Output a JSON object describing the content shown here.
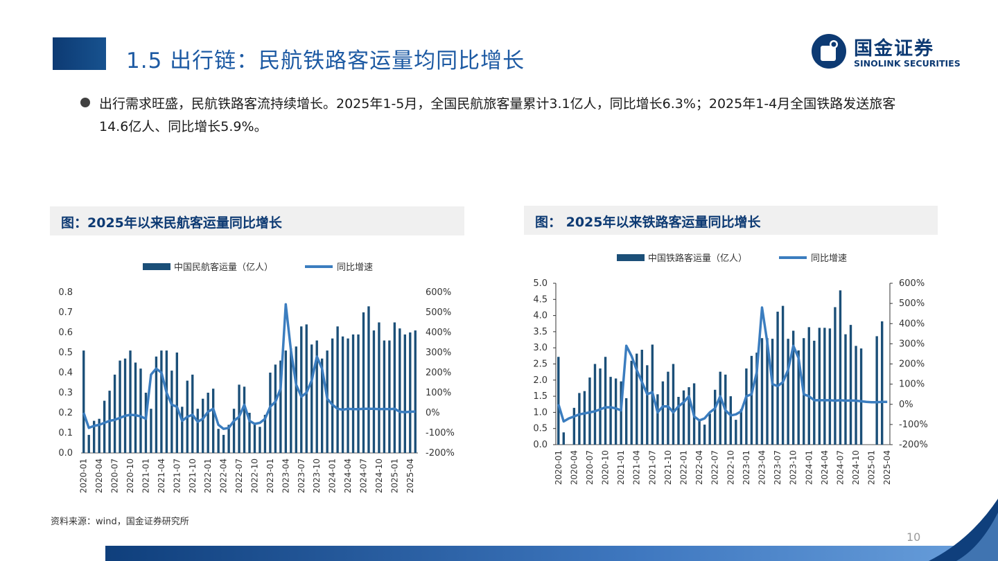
{
  "header": {
    "title": "1.5 出行链：民航铁路客运量均同比增长",
    "logo_cn": "国金证券",
    "logo_en": "SINOLINK SECURITIES"
  },
  "bullet": {
    "text": "出行需求旺盛，民航铁路客流持续增长。2025年1-5月，全国民航旅客量累计3.1亿人，同比增长6.3%；2025年1-4月全国铁路发送旅客14.6亿人、同比增长5.9%。"
  },
  "footer": {
    "source": "资料来源：wind，国金证券研究所",
    "page_number": "10"
  },
  "colors": {
    "bar": "#1b4f78",
    "line": "#3b7dbf",
    "accent": "#0d3a73"
  },
  "chart_data": [
    {
      "type": "bar",
      "title": "图：2025年以来民航客运量同比增长",
      "x": [
        "2020-01",
        "2020-02",
        "2020-03",
        "2020-04",
        "2020-05",
        "2020-06",
        "2020-07",
        "2020-08",
        "2020-09",
        "2020-10",
        "2020-11",
        "2020-12",
        "2021-01",
        "2021-02",
        "2021-03",
        "2021-04",
        "2021-05",
        "2021-06",
        "2021-07",
        "2021-08",
        "2021-09",
        "2021-10",
        "2021-11",
        "2021-12",
        "2022-01",
        "2022-02",
        "2022-03",
        "2022-04",
        "2022-05",
        "2022-06",
        "2022-07",
        "2022-08",
        "2022-09",
        "2022-10",
        "2022-11",
        "2022-12",
        "2023-01",
        "2023-02",
        "2023-03",
        "2023-04",
        "2023-05",
        "2023-06",
        "2023-07",
        "2023-08",
        "2023-09",
        "2023-10",
        "2023-11",
        "2023-12",
        "2024-01",
        "2024-02",
        "2024-03",
        "2024-04",
        "2024-05",
        "2024-06",
        "2024-07",
        "2024-08",
        "2024-09",
        "2024-10",
        "2024-11",
        "2024-12",
        "2025-01",
        "2025-02",
        "2025-03",
        "2025-04",
        "2025-05"
      ],
      "x_tick_labels": [
        "2020-01",
        "2020-04",
        "2020-07",
        "2020-10",
        "2021-01",
        "2021-04",
        "2021-07",
        "2021-10",
        "2022-01",
        "2022-04",
        "2022-07",
        "2022-10",
        "2023-01",
        "2023-04",
        "2023-07",
        "2023-10",
        "2024-01",
        "2024-04",
        "2024-07",
        "2024-10",
        "2025-01",
        "2025-04"
      ],
      "series": [
        {
          "name": "中国民航客运量（亿人）",
          "type": "bar",
          "axis": "left",
          "values": [
            0.51,
            0.09,
            0.16,
            0.17,
            0.26,
            0.31,
            0.39,
            0.46,
            0.47,
            0.51,
            0.45,
            0.42,
            0.3,
            0.22,
            0.48,
            0.51,
            0.51,
            0.41,
            0.5,
            0.23,
            0.36,
            0.39,
            0.22,
            0.27,
            0.3,
            0.32,
            0.12,
            0.09,
            0.14,
            0.22,
            0.34,
            0.33,
            0.2,
            0.15,
            0.13,
            0.19,
            0.4,
            0.44,
            0.46,
            0.51,
            0.52,
            0.53,
            0.63,
            0.64,
            0.54,
            0.56,
            0.47,
            0.51,
            0.57,
            0.63,
            0.58,
            0.57,
            0.59,
            0.59,
            0.7,
            0.73,
            0.61,
            0.65,
            0.56,
            0.56,
            0.65,
            0.62,
            0.59,
            0.6,
            0.61
          ]
        },
        {
          "name": "同比增速",
          "type": "line",
          "axis": "right",
          "values": [
            0.0,
            -0.75,
            -0.65,
            -0.6,
            -0.5,
            -0.4,
            -0.35,
            -0.25,
            -0.15,
            -0.1,
            -0.12,
            -0.18,
            -0.3,
            1.9,
            2.2,
            2.0,
            1.0,
            0.4,
            0.3,
            -0.4,
            -0.2,
            -0.1,
            -0.45,
            -0.3,
            0.05,
            0.2,
            -0.6,
            -0.8,
            -0.75,
            -0.4,
            -0.2,
            0.4,
            -0.4,
            -0.55,
            -0.5,
            -0.3,
            0.3,
            0.55,
            1.2,
            5.4,
            3.1,
            1.4,
            0.8,
            1.0,
            1.6,
            2.8,
            2.2,
            0.7,
            0.4,
            0.2,
            0.15,
            0.2,
            0.18,
            0.18,
            0.2,
            0.2,
            0.2,
            0.18,
            0.19,
            0.18,
            0.2,
            0.05,
            0.03,
            0.05,
            0.06
          ]
        }
      ],
      "ylim_left": [
        0,
        0.8
      ],
      "yticks_left": [
        "0.0",
        "0.1",
        "0.2",
        "0.3",
        "0.4",
        "0.5",
        "0.6",
        "0.7",
        "0.8"
      ],
      "ylim_right": [
        -2,
        6
      ],
      "yticks_right": [
        "-200%",
        "-100%",
        "0%",
        "100%",
        "200%",
        "300%",
        "400%",
        "500%",
        "600%"
      ],
      "legend": "top"
    },
    {
      "type": "bar",
      "title": "图： 2025年以来铁路客运量同比增长",
      "x": [
        "2020-01",
        "2020-02",
        "2020-03",
        "2020-04",
        "2020-05",
        "2020-06",
        "2020-07",
        "2020-08",
        "2020-09",
        "2020-10",
        "2020-11",
        "2020-12",
        "2021-01",
        "2021-02",
        "2021-03",
        "2021-04",
        "2021-05",
        "2021-06",
        "2021-07",
        "2021-08",
        "2021-09",
        "2021-10",
        "2021-11",
        "2021-12",
        "2022-01",
        "2022-02",
        "2022-03",
        "2022-04",
        "2022-05",
        "2022-06",
        "2022-07",
        "2022-08",
        "2022-09",
        "2022-10",
        "2022-11",
        "2022-12",
        "2023-01",
        "2023-02",
        "2023-03",
        "2023-04",
        "2023-05",
        "2023-06",
        "2023-07",
        "2023-08",
        "2023-09",
        "2023-10",
        "2023-11",
        "2023-12",
        "2024-01",
        "2024-02",
        "2024-03",
        "2024-04",
        "2024-05",
        "2024-06",
        "2024-07",
        "2024-08",
        "2024-09",
        "2024-10",
        "2024-11",
        "2024-12",
        "2025-01",
        "2025-02",
        "2025-03",
        "2025-04"
      ],
      "x_tick_labels": [
        "2020-01",
        "2020-04",
        "2020-07",
        "2020-10",
        "2021-01",
        "2021-04",
        "2021-07",
        "2021-10",
        "2022-01",
        "2022-04",
        "2022-07",
        "2022-10",
        "2023-01",
        "2023-04",
        "2023-07",
        "2023-10",
        "2024-01",
        "2024-04",
        "2024-07",
        "2024-10",
        "2025-01",
        "2025-04"
      ],
      "series": [
        {
          "name": "中国铁路客运量（亿人）",
          "type": "bar",
          "axis": "left",
          "values": [
            2.72,
            0.38,
            0.0,
            1.14,
            1.6,
            1.66,
            2.08,
            2.5,
            2.36,
            2.72,
            2.1,
            2.05,
            1.96,
            1.44,
            2.6,
            2.82,
            2.94,
            2.46,
            3.1,
            1.56,
            1.96,
            2.26,
            2.5,
            1.48,
            1.68,
            1.78,
            1.9,
            0.76,
            0.62,
            0.96,
            1.7,
            2.26,
            2.17,
            1.5,
            0.77,
            1.1,
            2.36,
            2.75,
            2.85,
            3.3,
            3.3,
            3.28,
            4.12,
            4.3,
            3.28,
            3.53,
            2.92,
            3.3,
            3.64,
            3.22,
            3.62,
            3.62,
            3.6,
            4.26,
            4.78,
            3.42,
            3.71,
            3.06,
            2.98,
            0.0,
            0.0,
            3.36,
            3.82,
            0.0
          ]
        },
        {
          "name": "同比增速",
          "type": "line",
          "axis": "right",
          "values": [
            0.0,
            -0.85,
            -0.7,
            -0.6,
            -0.5,
            -0.45,
            -0.4,
            -0.35,
            -0.25,
            -0.15,
            -0.15,
            -0.2,
            -0.3,
            2.9,
            2.4,
            1.7,
            1.1,
            0.5,
            0.6,
            -0.4,
            -0.1,
            -0.1,
            -0.4,
            -0.1,
            0.1,
            0.4,
            -0.6,
            -0.8,
            -0.7,
            -0.4,
            -0.2,
            0.4,
            -0.3,
            -0.55,
            -0.5,
            -0.35,
            0.4,
            0.5,
            1.6,
            4.8,
            3.1,
            1.0,
            0.9,
            1.1,
            1.7,
            2.9,
            2.3,
            0.5,
            0.4,
            0.2,
            0.2,
            0.2,
            0.2,
            0.18,
            0.2,
            0.18,
            0.19,
            0.18,
            0.15,
            0.12,
            0.1,
            0.1,
            0.12,
            0.12
          ]
        }
      ],
      "ylim_left": [
        0,
        5
      ],
      "yticks_left": [
        "0.0",
        "0.5",
        "1.0",
        "1.5",
        "2.0",
        "2.5",
        "3.0",
        "3.5",
        "4.0",
        "4.5",
        "5.0"
      ],
      "ylim_right": [
        -2,
        6
      ],
      "yticks_right": [
        "-200%",
        "-100%",
        "0%",
        "100%",
        "200%",
        "300%",
        "400%",
        "500%",
        "600%"
      ],
      "legend": "top"
    }
  ]
}
